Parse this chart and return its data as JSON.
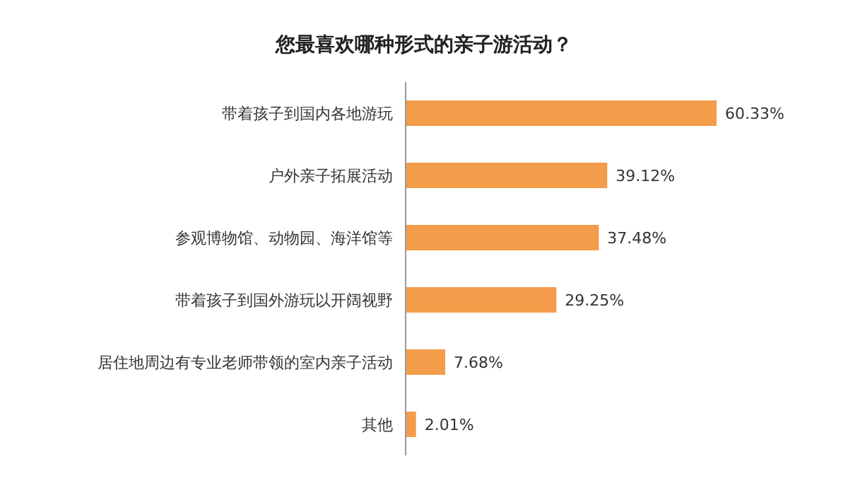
{
  "chart_data": {
    "type": "bar",
    "orientation": "horizontal",
    "title": "您最喜欢哪种形式的亲子游活动？",
    "categories": [
      "带着孩子到国内各地游玩",
      "户外亲子拓展活动",
      "参观博物馆、动物园、海洋馆等",
      "带着孩子到国外游玩以开阔视野",
      "居住地周边有专业老师带领的室内亲子活动",
      "其他"
    ],
    "values": [
      60.33,
      39.12,
      37.48,
      29.25,
      7.68,
      2.01
    ],
    "value_labels": [
      "60.33%",
      "39.12%",
      "37.48%",
      "29.25%",
      "7.68%",
      "2.01%"
    ],
    "color": "#f39c4a"
  }
}
